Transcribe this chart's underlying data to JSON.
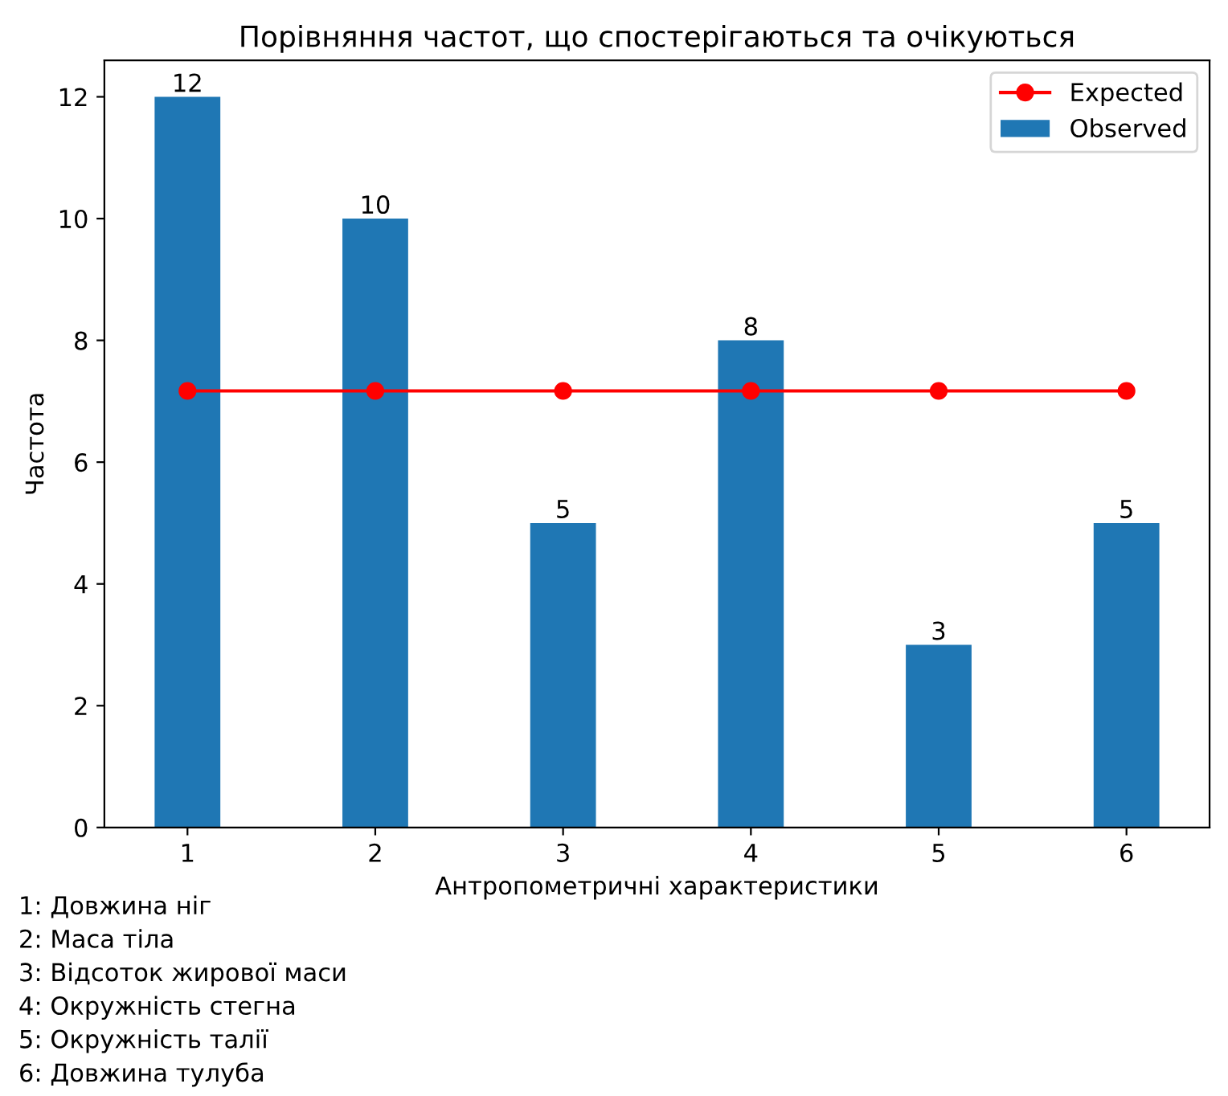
{
  "chart_data": {
    "type": "bar",
    "title": "Порівняння частот, що спостерігаються та очікуються",
    "xlabel": "Антропометричні характеристики",
    "ylabel": "Частота",
    "categories": [
      "1",
      "2",
      "3",
      "4",
      "5",
      "6"
    ],
    "series": [
      {
        "name": "Expected",
        "type": "line",
        "color": "#ff0000",
        "marker": "circle",
        "values": [
          7.17,
          7.17,
          7.17,
          7.17,
          7.17,
          7.17
        ]
      },
      {
        "name": "Observed",
        "color": "#1f77b4",
        "values": [
          12,
          10,
          5,
          8,
          3,
          5
        ],
        "value_labels": [
          "12",
          "10",
          "5",
          "8",
          "3",
          "5"
        ]
      }
    ],
    "ylim": [
      0,
      12.6
    ],
    "yticks": [
      0,
      2,
      4,
      6,
      8,
      10,
      12
    ],
    "grid": false,
    "legend": "top right",
    "annotations": [
      "1: Довжина ніг",
      "2: Маса тіла",
      "3: Відсоток жирової маси",
      "4: Окружність стегна",
      "5: Окружність талії",
      "6: Довжина тулуба"
    ]
  }
}
